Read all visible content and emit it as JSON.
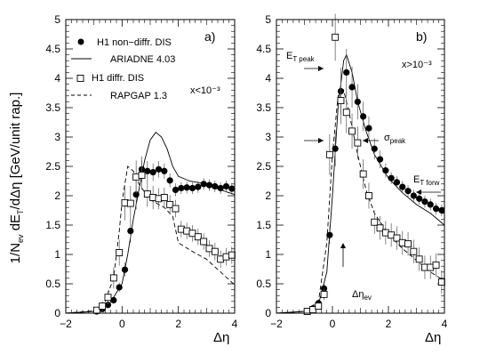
{
  "ylabel": "1/N_ev dE_T/dΔη [GeV/unit rap.]",
  "ylabel_parts": {
    "a": "1/N",
    "b": "ev",
    "c": " dE",
    "d": "T",
    "e": "/dΔη [GeV/unit rap.]"
  },
  "chart_data": [
    {
      "type": "scatter",
      "panel_label": "a)",
      "kinematic_label": "x<10⁻³",
      "xlabel": "Δη",
      "xlim": [
        -2,
        4
      ],
      "ylim": [
        0,
        5
      ],
      "xticks": [
        -2,
        0,
        2,
        4
      ],
      "yticks": [
        0,
        0.5,
        1,
        1.5,
        2,
        2.5,
        3,
        3.5,
        4,
        4.5,
        5
      ],
      "legend": [
        {
          "label": "H1 non−diffr. DIS",
          "style": "filled-circle"
        },
        {
          "label": "ARIADNE 4.03",
          "style": "solid-line"
        },
        {
          "label": "H1 diffr. DIS",
          "style": "open-square"
        },
        {
          "label": "RAPGAP 1.3",
          "style": "dashed-line"
        }
      ],
      "series": [
        {
          "name": "H1 non−diffr. DIS",
          "marker": "filled-circle",
          "points": [
            [
              -0.9,
              0.03
            ],
            [
              -0.7,
              0.07
            ],
            [
              -0.5,
              0.14
            ],
            [
              -0.3,
              0.22
            ],
            [
              -0.1,
              0.44
            ],
            [
              0.1,
              0.74
            ],
            [
              0.3,
              1.4
            ],
            [
              0.5,
              2.02
            ],
            [
              0.7,
              2.45
            ],
            [
              0.9,
              2.42
            ],
            [
              1.1,
              2.4
            ],
            [
              1.3,
              2.45
            ],
            [
              1.5,
              2.42
            ],
            [
              1.7,
              2.26
            ],
            [
              1.9,
              2.1
            ],
            [
              2.1,
              2.13
            ],
            [
              2.3,
              2.14
            ],
            [
              2.5,
              2.13
            ],
            [
              2.7,
              2.15
            ],
            [
              2.9,
              2.2
            ],
            [
              3.1,
              2.18
            ],
            [
              3.3,
              2.16
            ],
            [
              3.5,
              2.13
            ],
            [
              3.7,
              2.16
            ],
            [
              3.9,
              2.12
            ]
          ],
          "errors": [
            0.02,
            0.03,
            0.04,
            0.05,
            0.08,
            0.12,
            0.2,
            0.25,
            0.22,
            0.17,
            0.15,
            0.14,
            0.13,
            0.12,
            0.11,
            0.1,
            0.1,
            0.1,
            0.1,
            0.1,
            0.1,
            0.1,
            0.1,
            0.1,
            0.1
          ]
        },
        {
          "name": "H1 diffr. DIS",
          "marker": "open-square",
          "points": [
            [
              -0.9,
              0.05
            ],
            [
              -0.7,
              0.12
            ],
            [
              -0.5,
              0.27
            ],
            [
              -0.3,
              0.6
            ],
            [
              -0.1,
              1.03
            ],
            [
              0.1,
              1.88
            ],
            [
              0.3,
              1.87
            ],
            [
              0.5,
              2.32
            ],
            [
              0.7,
              2.35
            ],
            [
              0.9,
              2.03
            ],
            [
              1.1,
              1.97
            ],
            [
              1.3,
              1.95
            ],
            [
              1.5,
              1.97
            ],
            [
              1.7,
              1.85
            ],
            [
              1.9,
              1.78
            ],
            [
              2.1,
              1.43
            ],
            [
              2.3,
              1.4
            ],
            [
              2.5,
              1.36
            ],
            [
              2.7,
              1.3
            ],
            [
              2.9,
              1.22
            ],
            [
              3.1,
              1.1
            ],
            [
              3.3,
              1.05
            ],
            [
              3.5,
              0.92
            ],
            [
              3.7,
              0.96
            ],
            [
              3.9,
              0.99
            ]
          ],
          "errors": [
            0.04,
            0.08,
            0.12,
            0.18,
            0.22,
            0.3,
            0.3,
            0.28,
            0.25,
            0.22,
            0.2,
            0.18,
            0.17,
            0.16,
            0.15,
            0.14,
            0.14,
            0.14,
            0.14,
            0.14,
            0.14,
            0.15,
            0.15,
            0.15,
            0.15
          ]
        },
        {
          "name": "ARIADNE 4.03",
          "line": "solid",
          "points": [
            [
              -2,
              0.0
            ],
            [
              -1,
              0.03
            ],
            [
              -0.5,
              0.12
            ],
            [
              0,
              0.5
            ],
            [
              0.2,
              1.0
            ],
            [
              0.4,
              1.6
            ],
            [
              0.6,
              2.1
            ],
            [
              0.8,
              2.6
            ],
            [
              1.0,
              2.95
            ],
            [
              1.2,
              3.08
            ],
            [
              1.4,
              3.0
            ],
            [
              1.6,
              2.8
            ],
            [
              1.8,
              2.5
            ],
            [
              2.0,
              2.33
            ],
            [
              2.4,
              2.25
            ],
            [
              3.0,
              2.2
            ],
            [
              3.5,
              2.1
            ],
            [
              4.0,
              2.02
            ]
          ]
        },
        {
          "name": "RAPGAP 1.3",
          "line": "dashed",
          "points": [
            [
              -2,
              0.0
            ],
            [
              -1.0,
              0.04
            ],
            [
              -0.6,
              0.2
            ],
            [
              -0.3,
              0.6
            ],
            [
              -0.1,
              1.4
            ],
            [
              0.0,
              1.9
            ],
            [
              0.2,
              2.5
            ],
            [
              0.4,
              2.42
            ],
            [
              0.6,
              2.2
            ],
            [
              1.0,
              1.93
            ],
            [
              1.5,
              1.8
            ],
            [
              1.8,
              1.65
            ],
            [
              2.0,
              1.2
            ],
            [
              2.5,
              1.05
            ],
            [
              3.0,
              0.92
            ],
            [
              3.5,
              0.7
            ],
            [
              4.0,
              0.48
            ]
          ]
        }
      ]
    },
    {
      "type": "scatter",
      "panel_label": "b)",
      "kinematic_label": "x>10⁻³",
      "xlabel": "Δη",
      "xlim": [
        -2,
        4
      ],
      "ylim": [
        0,
        5
      ],
      "xticks": [
        -2,
        0,
        2,
        4
      ],
      "yticks": [
        0,
        0.5,
        1,
        1.5,
        2,
        2.5,
        3,
        3.5,
        4,
        4.5,
        5
      ],
      "annotations": {
        "et_peak": {
          "base": "E",
          "sub": "T peak"
        },
        "sigma_peak": {
          "base": "σ",
          "sub": "peak"
        },
        "et_forw": {
          "base": "E",
          "sub": "T forw"
        },
        "delta_eta_ev": {
          "base": "Δη",
          "sub": "ev"
        }
      },
      "series": [
        {
          "name": "H1 non−diffr. DIS",
          "marker": "filled-circle",
          "points": [
            [
              -0.9,
              0.03
            ],
            [
              -0.7,
              0.08
            ],
            [
              -0.5,
              0.17
            ],
            [
              -0.3,
              0.42
            ],
            [
              -0.1,
              1.33
            ],
            [
              0.1,
              2.8
            ],
            [
              0.3,
              3.78
            ],
            [
              0.5,
              4.1
            ],
            [
              0.7,
              3.85
            ],
            [
              0.9,
              3.6
            ],
            [
              1.1,
              3.35
            ],
            [
              1.3,
              3.15
            ],
            [
              1.5,
              2.8
            ],
            [
              1.7,
              2.62
            ],
            [
              1.9,
              2.43
            ],
            [
              2.1,
              2.3
            ],
            [
              2.3,
              2.23
            ],
            [
              2.5,
              2.15
            ],
            [
              2.7,
              2.08
            ],
            [
              2.9,
              2.0
            ],
            [
              3.1,
              1.95
            ],
            [
              3.3,
              1.9
            ],
            [
              3.5,
              1.85
            ],
            [
              3.7,
              1.78
            ],
            [
              3.9,
              1.75
            ]
          ],
          "errors": [
            0.02,
            0.03,
            0.04,
            0.08,
            0.15,
            0.3,
            0.4,
            0.4,
            0.35,
            0.3,
            0.25,
            0.2,
            0.18,
            0.15,
            0.12,
            0.1,
            0.1,
            0.1,
            0.1,
            0.1,
            0.1,
            0.1,
            0.1,
            0.1,
            0.1
          ]
        },
        {
          "name": "H1 diffr. DIS",
          "marker": "open-square",
          "points": [
            [
              -0.9,
              0.03
            ],
            [
              -0.7,
              0.06
            ],
            [
              -0.5,
              0.12
            ],
            [
              -0.3,
              0.32
            ],
            [
              -0.1,
              2.7
            ],
            [
              0.1,
              4.7
            ],
            [
              0.3,
              3.62
            ],
            [
              0.5,
              3.42
            ],
            [
              0.7,
              3.1
            ],
            [
              0.9,
              2.9
            ],
            [
              1.1,
              2.37
            ],
            [
              1.3,
              2.0
            ],
            [
              1.5,
              1.55
            ],
            [
              1.7,
              1.45
            ],
            [
              1.9,
              1.37
            ],
            [
              2.1,
              1.33
            ],
            [
              2.3,
              1.28
            ],
            [
              2.5,
              1.2
            ],
            [
              2.7,
              1.18
            ],
            [
              2.9,
              1.05
            ],
            [
              3.1,
              0.92
            ],
            [
              3.3,
              0.78
            ],
            [
              3.5,
              0.78
            ],
            [
              3.7,
              0.82
            ],
            [
              3.9,
              0.53
            ]
          ],
          "errors": [
            0.02,
            0.03,
            0.05,
            0.1,
            0.35,
            0.4,
            0.4,
            0.35,
            0.3,
            0.28,
            0.25,
            0.22,
            0.2,
            0.2,
            0.2,
            0.2,
            0.2,
            0.2,
            0.2,
            0.2,
            0.2,
            0.2,
            0.2,
            0.2,
            0.2
          ]
        },
        {
          "name": "ARIADNE 4.03",
          "line": "solid",
          "points": [
            [
              -2,
              0.0
            ],
            [
              -1,
              0.03
            ],
            [
              -0.5,
              0.15
            ],
            [
              -0.2,
              0.7
            ],
            [
              0.0,
              2.0
            ],
            [
              0.2,
              3.5
            ],
            [
              0.4,
              4.3
            ],
            [
              0.5,
              4.4
            ],
            [
              0.7,
              4.1
            ],
            [
              0.9,
              3.6
            ],
            [
              1.2,
              3.1
            ],
            [
              1.5,
              2.7
            ],
            [
              2.0,
              2.3
            ],
            [
              2.5,
              2.05
            ],
            [
              3.0,
              1.85
            ],
            [
              3.5,
              1.7
            ],
            [
              4.0,
              1.5
            ]
          ]
        },
        {
          "name": "RAPGAP 1.3",
          "line": "dashed",
          "points": [
            [
              -2,
              0.0
            ],
            [
              -1,
              0.03
            ],
            [
              -0.5,
              0.2
            ],
            [
              -0.2,
              1.2
            ],
            [
              0.0,
              2.7
            ],
            [
              0.2,
              3.7
            ],
            [
              0.4,
              3.8
            ],
            [
              0.6,
              3.4
            ],
            [
              0.9,
              2.7
            ],
            [
              1.2,
              2.1
            ],
            [
              1.5,
              1.7
            ],
            [
              2.0,
              1.35
            ],
            [
              2.5,
              1.1
            ],
            [
              3.0,
              0.9
            ],
            [
              3.5,
              0.7
            ],
            [
              4.0,
              0.55
            ]
          ]
        }
      ]
    }
  ]
}
